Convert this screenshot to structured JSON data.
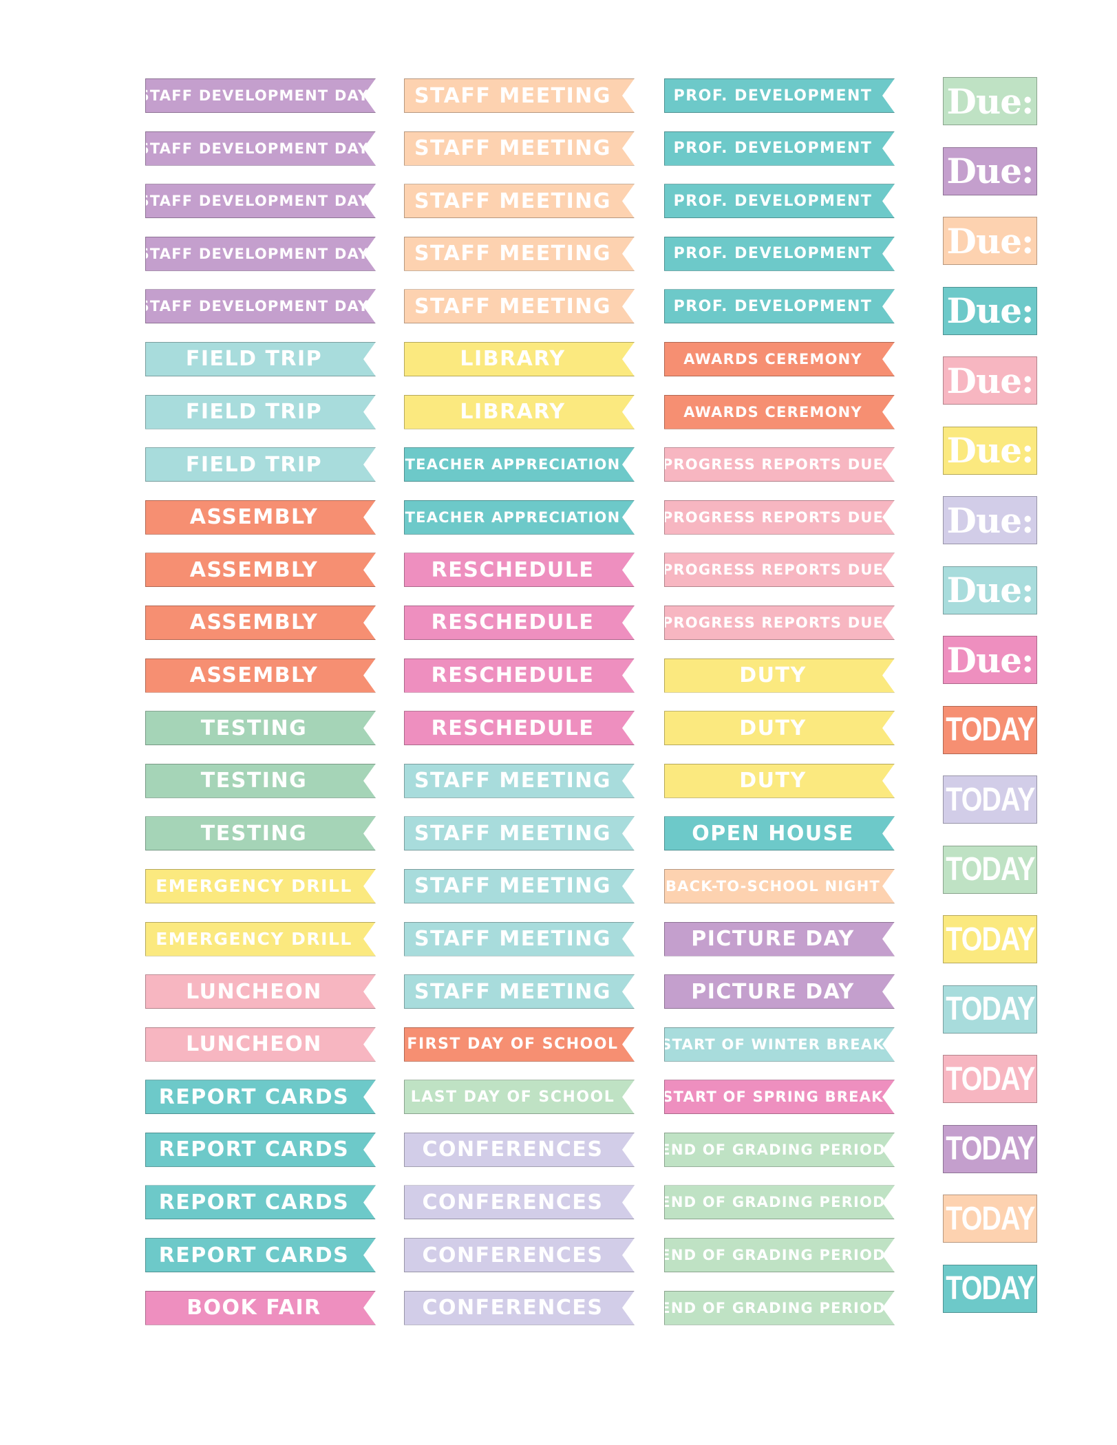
{
  "colors": {
    "purple": "#c49fcd",
    "peach": "#fdd2b0",
    "teal": "#6dc9c9",
    "lightblue": "#a8dcdc",
    "yellow": "#fbe97f",
    "coral": "#f68f72",
    "pink": "#f7b6c1",
    "hotpink": "#ee8fbf",
    "mint": "#a5d4b7",
    "lavender": "#d2cde8",
    "lightgreen": "#bfe2c4"
  },
  "columns": [
    [
      {
        "text": "STAFF DEVELOPMENT DAY",
        "color": "purple",
        "size": "xs"
      },
      {
        "text": "STAFF DEVELOPMENT DAY",
        "color": "purple",
        "size": "xs"
      },
      {
        "text": "STAFF DEVELOPMENT DAY",
        "color": "purple",
        "size": "xs"
      },
      {
        "text": "STAFF DEVELOPMENT DAY",
        "color": "purple",
        "size": "xs"
      },
      {
        "text": "STAFF DEVELOPMENT DAY",
        "color": "purple",
        "size": "xs"
      },
      {
        "text": "FIELD TRIP",
        "color": "lightblue",
        "size": "l"
      },
      {
        "text": "FIELD TRIP",
        "color": "lightblue",
        "size": "l"
      },
      {
        "text": "FIELD TRIP",
        "color": "lightblue",
        "size": "l"
      },
      {
        "text": "ASSEMBLY",
        "color": "coral",
        "size": "l"
      },
      {
        "text": "ASSEMBLY",
        "color": "coral",
        "size": "l"
      },
      {
        "text": "ASSEMBLY",
        "color": "coral",
        "size": "l"
      },
      {
        "text": "ASSEMBLY",
        "color": "coral",
        "size": "l"
      },
      {
        "text": "TESTING",
        "color": "mint",
        "size": "l"
      },
      {
        "text": "TESTING",
        "color": "mint",
        "size": "l"
      },
      {
        "text": "TESTING",
        "color": "mint",
        "size": "l"
      },
      {
        "text": "EMERGENCY DRILL",
        "color": "yellow",
        "size": "m"
      },
      {
        "text": "EMERGENCY DRILL",
        "color": "yellow",
        "size": "m"
      },
      {
        "text": "LUNCHEON",
        "color": "pink",
        "size": "l"
      },
      {
        "text": "LUNCHEON",
        "color": "pink",
        "size": "l"
      },
      {
        "text": "REPORT CARDS",
        "color": "teal",
        "size": "l"
      },
      {
        "text": "REPORT CARDS",
        "color": "teal",
        "size": "l"
      },
      {
        "text": "REPORT CARDS",
        "color": "teal",
        "size": "l"
      },
      {
        "text": "REPORT CARDS",
        "color": "teal",
        "size": "l"
      },
      {
        "text": "BOOK FAIR",
        "color": "hotpink",
        "size": "l"
      }
    ],
    [
      {
        "text": "STAFF MEETING",
        "color": "peach",
        "size": "l"
      },
      {
        "text": "STAFF MEETING",
        "color": "peach",
        "size": "l"
      },
      {
        "text": "STAFF MEETING",
        "color": "peach",
        "size": "l"
      },
      {
        "text": "STAFF MEETING",
        "color": "peach",
        "size": "l"
      },
      {
        "text": "STAFF MEETING",
        "color": "peach",
        "size": "l"
      },
      {
        "text": "LIBRARY",
        "color": "yellow",
        "size": "l"
      },
      {
        "text": "LIBRARY",
        "color": "yellow",
        "size": "l"
      },
      {
        "text": "TEACHER APPRECIATION",
        "color": "teal",
        "size": "xs"
      },
      {
        "text": "TEACHER APPRECIATION",
        "color": "teal",
        "size": "xs"
      },
      {
        "text": "RESCHEDULE",
        "color": "hotpink",
        "size": "l"
      },
      {
        "text": "RESCHEDULE",
        "color": "hotpink",
        "size": "l"
      },
      {
        "text": "RESCHEDULE",
        "color": "hotpink",
        "size": "l"
      },
      {
        "text": "RESCHEDULE",
        "color": "hotpink",
        "size": "l"
      },
      {
        "text": "STAFF MEETING",
        "color": "lightblue",
        "size": "l"
      },
      {
        "text": "STAFF MEETING",
        "color": "lightblue",
        "size": "l"
      },
      {
        "text": "STAFF MEETING",
        "color": "lightblue",
        "size": "l"
      },
      {
        "text": "STAFF MEETING",
        "color": "lightblue",
        "size": "l"
      },
      {
        "text": "STAFF MEETING",
        "color": "lightblue",
        "size": "l"
      },
      {
        "text": "FIRST DAY OF SCHOOL",
        "color": "coral",
        "size": "s"
      },
      {
        "text": "LAST DAY OF SCHOOL",
        "color": "lightgreen",
        "size": "s"
      },
      {
        "text": "CONFERENCES",
        "color": "lavender",
        "size": "l"
      },
      {
        "text": "CONFERENCES",
        "color": "lavender",
        "size": "l"
      },
      {
        "text": "CONFERENCES",
        "color": "lavender",
        "size": "l"
      },
      {
        "text": "CONFERENCES",
        "color": "lavender",
        "size": "l"
      }
    ],
    [
      {
        "text": "PROF. DEVELOPMENT",
        "color": "teal",
        "size": "s"
      },
      {
        "text": "PROF. DEVELOPMENT",
        "color": "teal",
        "size": "s"
      },
      {
        "text": "PROF. DEVELOPMENT",
        "color": "teal",
        "size": "s"
      },
      {
        "text": "PROF. DEVELOPMENT",
        "color": "teal",
        "size": "s"
      },
      {
        "text": "PROF. DEVELOPMENT",
        "color": "teal",
        "size": "s"
      },
      {
        "text": "AWARDS CEREMONY",
        "color": "coral",
        "size": "xs"
      },
      {
        "text": "AWARDS CEREMONY",
        "color": "coral",
        "size": "xs"
      },
      {
        "text": "PROGRESS REPORTS DUE",
        "color": "pink",
        "size": "xs"
      },
      {
        "text": "PROGRESS REPORTS DUE",
        "color": "pink",
        "size": "xs"
      },
      {
        "text": "PROGRESS REPORTS DUE",
        "color": "pink",
        "size": "xs"
      },
      {
        "text": "PROGRESS REPORTS DUE",
        "color": "pink",
        "size": "xs"
      },
      {
        "text": "DUTY",
        "color": "yellow",
        "size": "l"
      },
      {
        "text": "DUTY",
        "color": "yellow",
        "size": "l"
      },
      {
        "text": "DUTY",
        "color": "yellow",
        "size": "l"
      },
      {
        "text": "OPEN HOUSE",
        "color": "teal",
        "size": "l"
      },
      {
        "text": "BACK-TO-SCHOOL NIGHT",
        "color": "peach",
        "size": "xs"
      },
      {
        "text": "PICTURE DAY",
        "color": "purple",
        "size": "l"
      },
      {
        "text": "PICTURE DAY",
        "color": "purple",
        "size": "l"
      },
      {
        "text": "START OF WINTER BREAK",
        "color": "lightblue",
        "size": "xs"
      },
      {
        "text": "START OF SPRING BREAK",
        "color": "hotpink",
        "size": "xs"
      },
      {
        "text": "END OF GRADING PERIOD",
        "color": "lightgreen",
        "size": "xs"
      },
      {
        "text": "END OF GRADING PERIOD",
        "color": "lightgreen",
        "size": "xs"
      },
      {
        "text": "END OF GRADING PERIOD",
        "color": "lightgreen",
        "size": "xs"
      },
      {
        "text": "END OF GRADING PERIOD",
        "color": "lightgreen",
        "size": "xs"
      }
    ]
  ],
  "side_tags": [
    {
      "text": "Due:",
      "kind": "due",
      "color": "lightgreen"
    },
    {
      "text": "Due:",
      "kind": "due",
      "color": "purple"
    },
    {
      "text": "Due:",
      "kind": "due",
      "color": "peach"
    },
    {
      "text": "Due:",
      "kind": "due",
      "color": "teal"
    },
    {
      "text": "Due:",
      "kind": "due",
      "color": "pink"
    },
    {
      "text": "Due:",
      "kind": "due",
      "color": "yellow"
    },
    {
      "text": "Due:",
      "kind": "due",
      "color": "lavender"
    },
    {
      "text": "Due:",
      "kind": "due",
      "color": "lightblue"
    },
    {
      "text": "Due:",
      "kind": "due",
      "color": "hotpink"
    },
    {
      "text": "TODAY",
      "kind": "today",
      "color": "coral"
    },
    {
      "text": "TODAY",
      "kind": "today",
      "color": "lavender"
    },
    {
      "text": "TODAY",
      "kind": "today",
      "color": "lightgreen"
    },
    {
      "text": "TODAY",
      "kind": "today",
      "color": "yellow"
    },
    {
      "text": "TODAY",
      "kind": "today",
      "color": "lightblue"
    },
    {
      "text": "TODAY",
      "kind": "today",
      "color": "pink"
    },
    {
      "text": "TODAY",
      "kind": "today",
      "color": "purple"
    },
    {
      "text": "TODAY",
      "kind": "today",
      "color": "peach"
    },
    {
      "text": "TODAY",
      "kind": "today",
      "color": "teal"
    }
  ]
}
